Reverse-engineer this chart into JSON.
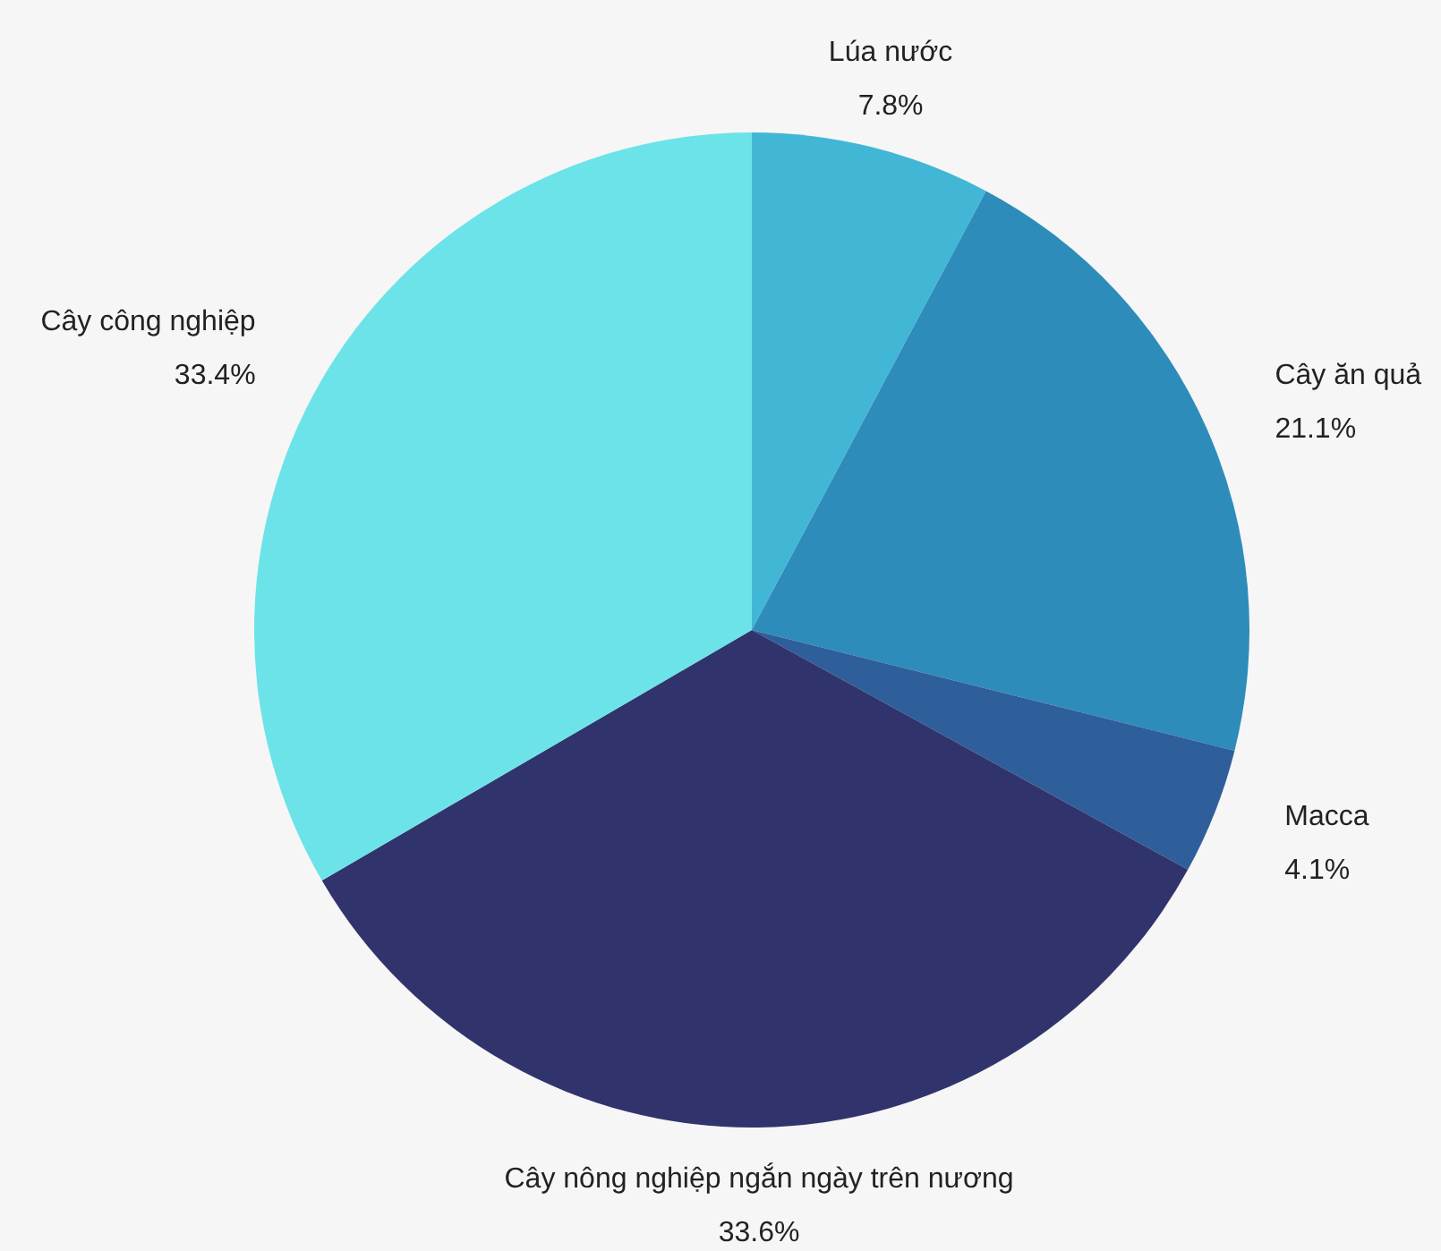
{
  "chart_data": {
    "type": "pie",
    "categories": [
      "Lúa nước",
      "Cây ăn quả",
      "Macca",
      "Cây nông nghiệp ngắn ngày trên nương",
      "Cây công nghiệp"
    ],
    "values": [
      7.8,
      21.1,
      4.1,
      33.6,
      33.4
    ],
    "value_labels": [
      "7.8%",
      "21.1%",
      "4.1%",
      "33.6%",
      "33.4%"
    ],
    "colors": [
      "#42b7d5",
      "#2e8cba",
      "#2e5f9a",
      "#31346c",
      "#6ce3e8"
    ]
  }
}
